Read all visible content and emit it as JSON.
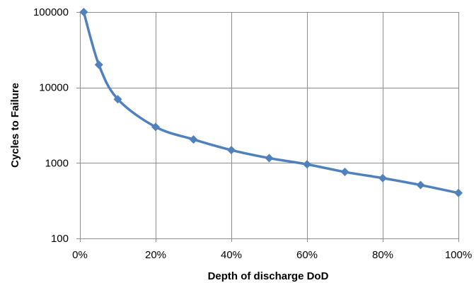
{
  "chart_data": {
    "type": "line",
    "title": "",
    "xlabel": "Depth of discharge DoD",
    "ylabel": "Cycles to Failure",
    "x_ticks": [
      "0%",
      "20%",
      "40%",
      "60%",
      "80%",
      "100%"
    ],
    "y_ticks": [
      "100",
      "1000",
      "10000",
      "100000"
    ],
    "xlim": [
      0,
      100
    ],
    "ylim": [
      100,
      100000
    ],
    "y_scale": "log",
    "grid": true,
    "legend": "none",
    "series": [
      {
        "color": "#4f81bd",
        "marker": "diamond",
        "x": [
          1,
          5,
          10,
          20,
          30,
          40,
          50,
          60,
          70,
          80,
          90,
          100
        ],
        "values": [
          100000,
          20000,
          7000,
          3000,
          2050,
          1480,
          1160,
          960,
          760,
          630,
          510,
          400
        ]
      }
    ]
  }
}
